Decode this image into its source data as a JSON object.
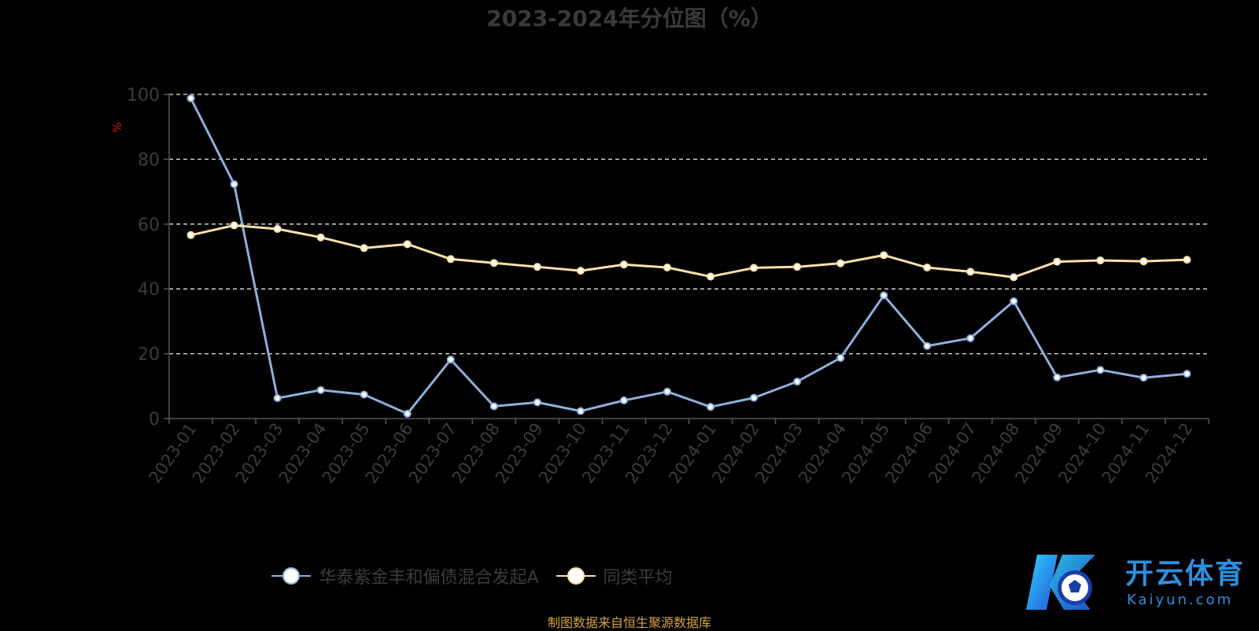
{
  "chart_data": {
    "type": "line",
    "title": "2023-2024年分位图（%）",
    "ylabel": "%",
    "ylim": [
      0,
      100
    ],
    "yticks": [
      0,
      20,
      40,
      60,
      80,
      100
    ],
    "grid": true,
    "legend_position": "bottom",
    "categories": [
      "2023-01",
      "2023-02",
      "2023-03",
      "2023-04",
      "2023-05",
      "2023-06",
      "2023-07",
      "2023-08",
      "2023-09",
      "2023-10",
      "2023-11",
      "2023-12",
      "2024-01",
      "2024-02",
      "2024-03",
      "2024-04",
      "2024-05",
      "2024-06",
      "2024-07",
      "2024-08",
      "2024-09",
      "2024-10",
      "2024-11",
      "2024-12"
    ],
    "series": [
      {
        "name": "华泰紫金丰和偏债混合发起A",
        "color": "#8fafdc",
        "values": [
          98.8,
          72.3,
          6.3,
          8.8,
          7.4,
          1.5,
          18.2,
          3.8,
          5.0,
          2.3,
          5.6,
          8.3,
          3.6,
          6.4,
          11.4,
          18.7,
          38.0,
          22.4,
          24.8,
          36.2,
          12.7,
          15.0,
          12.6,
          13.8
        ]
      },
      {
        "name": "同类平均",
        "color": "#ffe0a6",
        "values": [
          56.6,
          59.6,
          58.5,
          55.9,
          52.6,
          53.8,
          49.2,
          48.0,
          46.8,
          45.6,
          47.5,
          46.6,
          43.8,
          46.5,
          46.8,
          47.9,
          50.4,
          46.6,
          45.3,
          43.6,
          48.4,
          48.8,
          48.5,
          49.0
        ]
      }
    ]
  },
  "source": "制图数据来自恒生聚源数据库",
  "logo": {
    "brand_text": "开云体育",
    "brand_sub": "Kaiyun.com"
  }
}
